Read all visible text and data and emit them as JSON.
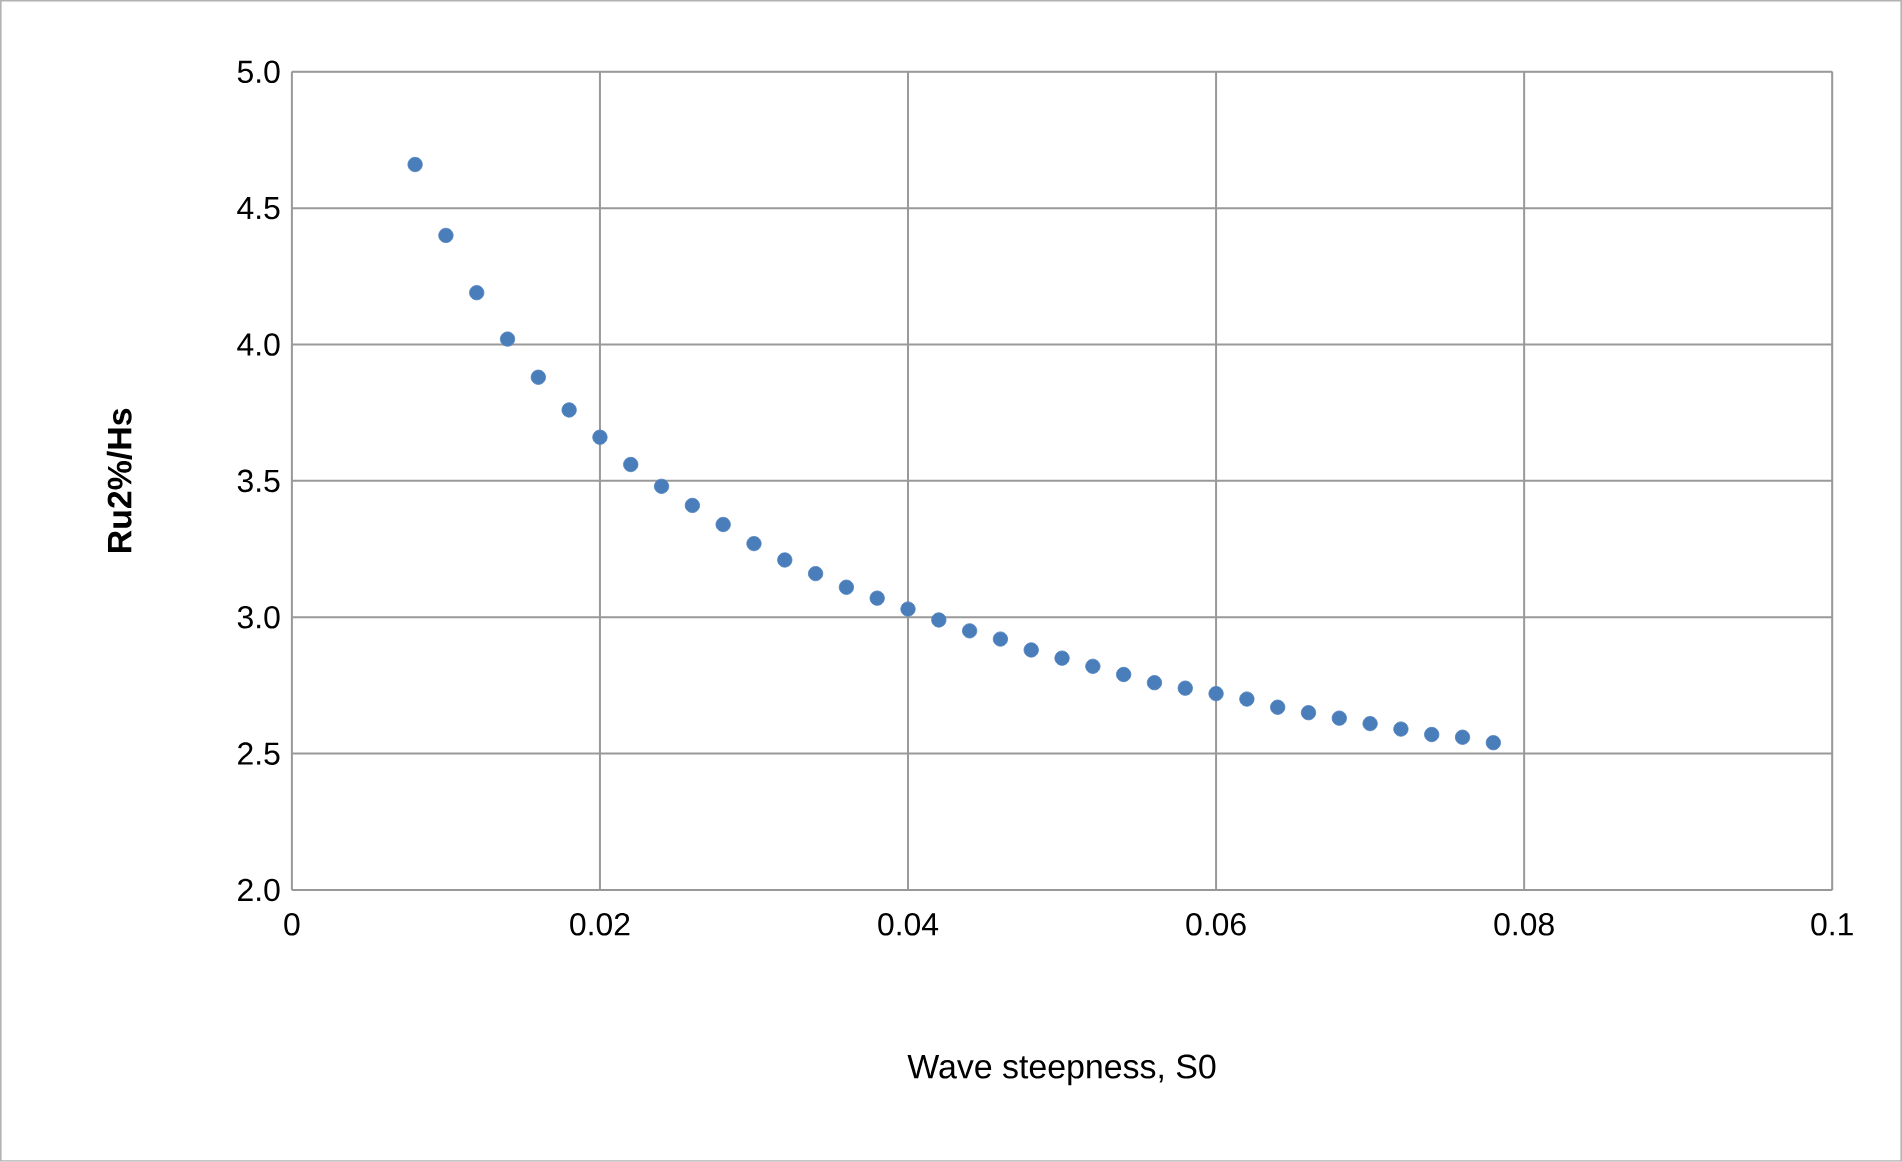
{
  "chart_data": {
    "type": "scatter",
    "xlabel": "Wave steepness, S0",
    "ylabel": "Ru2%/Hs",
    "xlim": [
      0,
      0.1
    ],
    "ylim": [
      2,
      5
    ],
    "xticks": [
      0,
      0.02,
      0.04,
      0.06,
      0.08,
      0.1
    ],
    "yticks": [
      {
        "value": 2,
        "label": "2.0"
      },
      {
        "value": 2.5,
        "label": "2.5"
      },
      {
        "value": 3,
        "label": "3.0"
      },
      {
        "value": 3.5,
        "label": "3.5"
      },
      {
        "value": 4,
        "label": "4.0"
      },
      {
        "value": 4.5,
        "label": "4.5"
      },
      {
        "value": 5,
        "label": "5.0"
      }
    ],
    "grid": true,
    "marker": "circle",
    "series": [
      {
        "color": "#4a7ebb",
        "x": [
          0.008,
          0.01,
          0.012,
          0.014,
          0.016,
          0.018,
          0.02,
          0.022,
          0.024,
          0.026,
          0.028,
          0.03,
          0.032,
          0.034,
          0.036,
          0.038,
          0.04,
          0.042,
          0.044,
          0.046,
          0.048,
          0.05,
          0.052,
          0.054,
          0.056,
          0.058,
          0.06,
          0.062,
          0.064,
          0.066,
          0.068,
          0.07,
          0.072,
          0.074,
          0.076,
          0.078
        ],
        "values": [
          4.66,
          4.4,
          4.19,
          4.02,
          3.88,
          3.76,
          3.66,
          3.56,
          3.48,
          3.41,
          3.34,
          3.27,
          3.21,
          3.16,
          3.11,
          3.07,
          3.03,
          2.99,
          2.95,
          2.92,
          2.88,
          2.85,
          2.82,
          2.79,
          2.76,
          2.74,
          2.72,
          2.7,
          2.67,
          2.65,
          2.63,
          2.61,
          2.59,
          2.57,
          2.56,
          2.54
        ]
      }
    ]
  }
}
